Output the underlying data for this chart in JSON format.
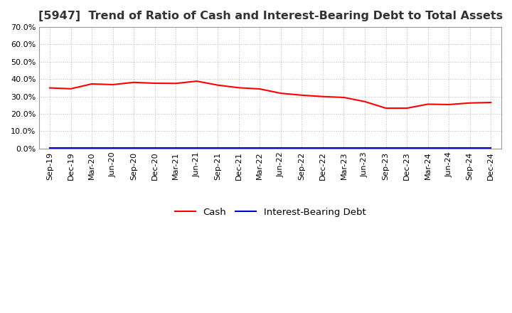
{
  "title": "[5947]  Trend of Ratio of Cash and Interest-Bearing Debt to Total Assets",
  "labels": [
    "Sep-19",
    "Dec-19",
    "Mar-20",
    "Jun-20",
    "Sep-20",
    "Dec-20",
    "Mar-21",
    "Jun-21",
    "Sep-21",
    "Dec-21",
    "Mar-22",
    "Jun-22",
    "Sep-22",
    "Dec-22",
    "Mar-23",
    "Jun-23",
    "Sep-23",
    "Dec-23",
    "Mar-24",
    "Jun-24",
    "Sep-24",
    "Dec-24"
  ],
  "cash": [
    0.349,
    0.344,
    0.372,
    0.368,
    0.381,
    0.376,
    0.375,
    0.388,
    0.365,
    0.35,
    0.343,
    0.318,
    0.307,
    0.299,
    0.294,
    0.27,
    0.232,
    0.232,
    0.255,
    0.253,
    0.262,
    0.265
  ],
  "interest_bearing_debt": [
    0.001,
    0.001,
    0.001,
    0.001,
    0.001,
    0.001,
    0.001,
    0.001,
    0.001,
    0.001,
    0.001,
    0.001,
    0.001,
    0.001,
    0.001,
    0.001,
    0.001,
    0.001,
    0.001,
    0.001,
    0.001,
    0.001
  ],
  "cash_color": "#ff0000",
  "debt_color": "#0000cc",
  "ylim": [
    0.0,
    0.7
  ],
  "yticks": [
    0.0,
    0.1,
    0.2,
    0.3,
    0.4,
    0.5,
    0.6,
    0.7
  ],
  "background_color": "#ffffff",
  "plot_bg_color": "#ffffff",
  "grid_color": "#bbbbbb",
  "title_color": "#333333",
  "legend_labels": [
    "Cash",
    "Interest-Bearing Debt"
  ],
  "title_fontsize": 11.5,
  "tick_fontsize": 8,
  "legend_fontsize": 9.5
}
